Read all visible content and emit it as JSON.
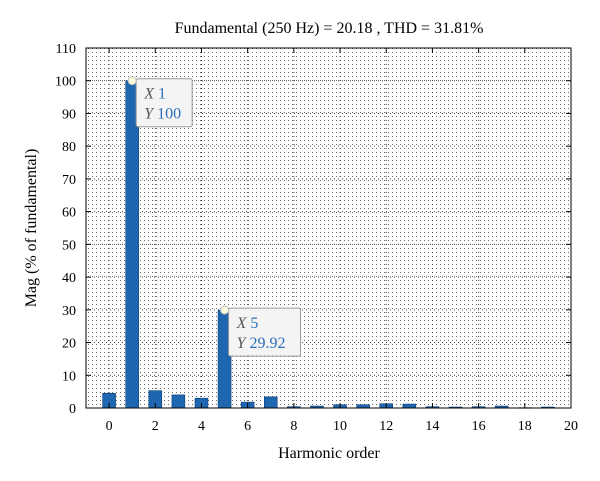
{
  "chart_data": {
    "type": "bar",
    "title": "Fundamental (250 Hz) = 20.18 , THD = 31.81%",
    "xlabel": "Harmonic order",
    "ylabel": "Mag (% of fundamental)",
    "xlim": [
      -1,
      20
    ],
    "ylim": [
      0,
      110
    ],
    "xticks": [
      0,
      2,
      4,
      6,
      8,
      10,
      12,
      14,
      16,
      18,
      20
    ],
    "yticks": [
      0,
      10,
      20,
      30,
      40,
      50,
      60,
      70,
      80,
      90,
      100,
      110
    ],
    "grid": "dotted",
    "bar_color": "#1f66b0",
    "x": [
      0,
      1,
      2,
      3,
      4,
      5,
      6,
      7,
      8,
      9,
      10,
      11,
      12,
      13,
      14,
      15,
      16,
      17,
      18,
      19
    ],
    "values": [
      4.5,
      100,
      5.3,
      4.0,
      3.0,
      29.92,
      1.8,
      3.4,
      0.4,
      0.6,
      1.0,
      1.0,
      1.3,
      1.2,
      0.4,
      0.3,
      0.4,
      0.6,
      0.1,
      0.3
    ],
    "datatips": [
      {
        "x_key": "X",
        "x_value": "1",
        "y_key": "Y",
        "y_value": "100",
        "x": 1,
        "y": 100
      },
      {
        "x_key": "X",
        "x_value": "5",
        "y_key": "Y",
        "y_value": "29.92",
        "x": 5,
        "y": 29.92
      }
    ]
  }
}
